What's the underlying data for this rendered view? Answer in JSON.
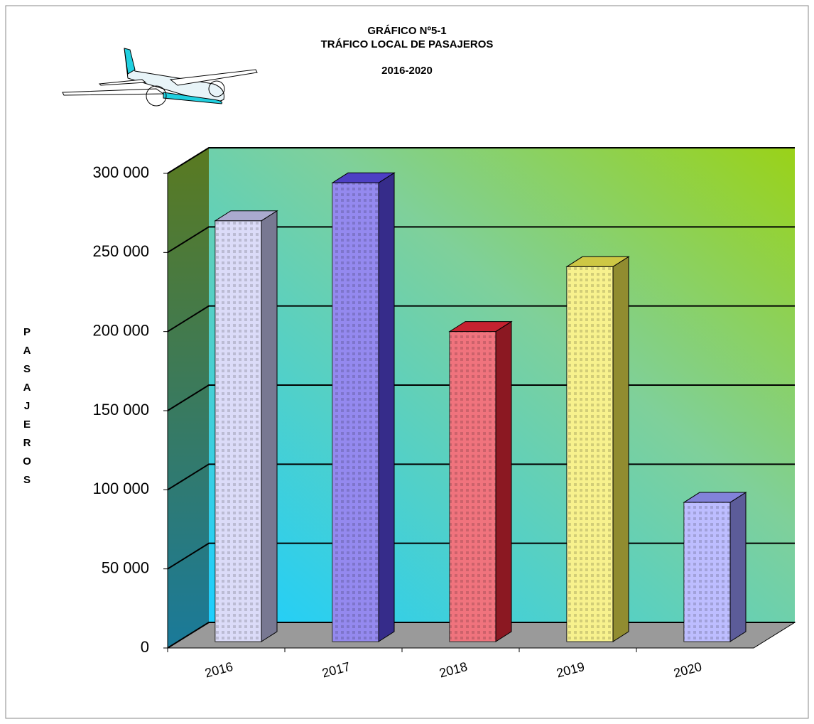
{
  "chart_data": {
    "type": "bar3d",
    "title": [
      "GRÁFICO Nº5-1",
      "TRÁFICO LOCAL DE PASAJEROS",
      "2016-2020"
    ],
    "y_label": [
      "P",
      "A",
      "S",
      "A",
      "J",
      "E",
      "R",
      "O",
      "S"
    ],
    "categories": [
      "2016",
      "2017",
      "2018",
      "2019",
      "2020"
    ],
    "values": [
      266000,
      290000,
      196000,
      237000,
      88000
    ],
    "colors": [
      "#c8c8f4",
      "#5a4ae6",
      "#e82838",
      "#f2ea50",
      "#9999ff"
    ],
    "ylim": [
      0,
      300000
    ],
    "yticks": [
      {
        "value": 0,
        "label": "0"
      },
      {
        "value": 50000,
        "label": "50 000"
      },
      {
        "value": 100000,
        "label": "100 000"
      },
      {
        "value": 150000,
        "label": "150 000"
      },
      {
        "value": 200000,
        "label": "200 000"
      },
      {
        "value": 250000,
        "label": "250 000"
      },
      {
        "value": 300000,
        "label": "300 000"
      }
    ],
    "grid": true
  }
}
